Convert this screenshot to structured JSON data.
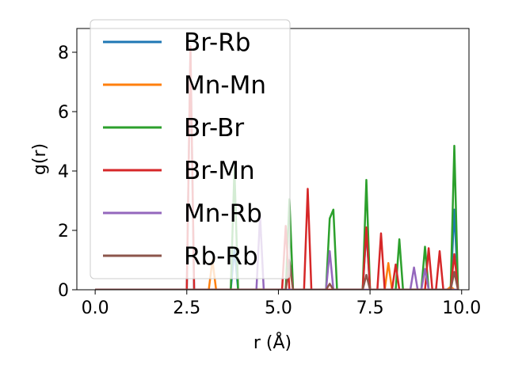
{
  "chart_data": {
    "type": "line",
    "xlabel": "r (Å)",
    "ylabel": "g(r)",
    "xlim": [
      -0.5,
      10.2
    ],
    "ylim": [
      0,
      8.8
    ],
    "xticks": [
      "0.0",
      "2.5",
      "5.0",
      "7.5",
      "10.0"
    ],
    "xtick_values": [
      0.0,
      2.5,
      5.0,
      7.5,
      10.0
    ],
    "yticks": [
      "0",
      "2",
      "4",
      "6",
      "8"
    ],
    "ytick_values": [
      0,
      2,
      4,
      6,
      8
    ],
    "grid": false,
    "legend_position": "top-left",
    "series": [
      {
        "name": "Br-Rb",
        "color": "#1f77b4",
        "peaks": [
          [
            2.6,
            8.1
          ],
          [
            3.8,
            1.4
          ],
          [
            7.4,
            2.0
          ],
          [
            9.8,
            2.7
          ]
        ]
      },
      {
        "name": "Mn-Mn",
        "color": "#ff7f0e",
        "peaks": [
          [
            3.2,
            1.0
          ],
          [
            5.3,
            0.9
          ],
          [
            8.0,
            0.9
          ],
          [
            9.7,
            0.1
          ]
        ]
      },
      {
        "name": "Br-Br",
        "color": "#2ca02c",
        "peaks": [
          [
            3.8,
            4.1
          ],
          [
            5.3,
            3.05
          ],
          [
            6.4,
            2.4
          ],
          [
            6.5,
            2.7
          ],
          [
            7.4,
            3.7
          ],
          [
            8.3,
            1.7
          ],
          [
            9.0,
            1.45
          ],
          [
            9.8,
            4.85
          ]
        ]
      },
      {
        "name": "Br-Mn",
        "color": "#d62728",
        "peaks": [
          [
            2.6,
            8.2
          ],
          [
            5.2,
            2.15
          ],
          [
            5.8,
            3.4
          ],
          [
            7.4,
            2.1
          ],
          [
            7.8,
            1.9
          ],
          [
            8.2,
            0.85
          ],
          [
            9.1,
            1.4
          ],
          [
            9.4,
            1.3
          ],
          [
            9.8,
            1.2
          ]
        ]
      },
      {
        "name": "Mn-Rb",
        "color": "#9467bd",
        "peaks": [
          [
            4.5,
            2.5
          ],
          [
            6.4,
            1.3
          ],
          [
            8.7,
            0.75
          ],
          [
            9.0,
            0.7
          ]
        ]
      },
      {
        "name": "Rb-Rb",
        "color": "#8c564b",
        "peaks": [
          [
            5.3,
            1.0
          ],
          [
            6.4,
            0.2
          ],
          [
            7.4,
            0.5
          ],
          [
            9.8,
            0.6
          ]
        ]
      }
    ]
  }
}
